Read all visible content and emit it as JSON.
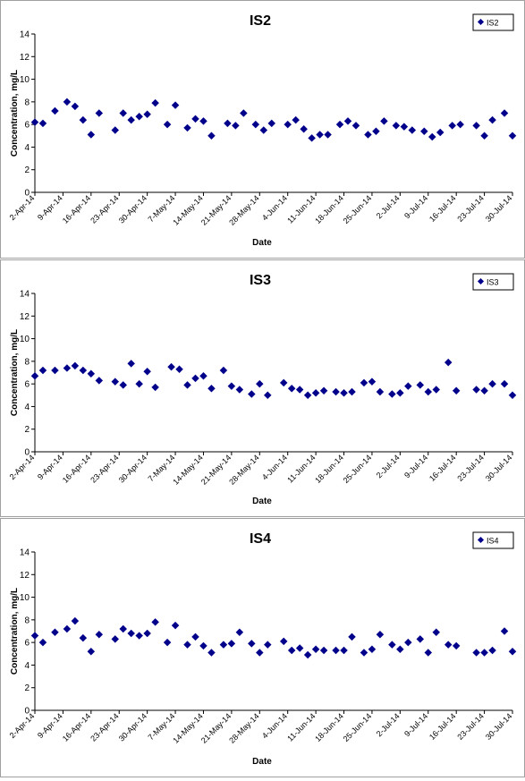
{
  "colors": {
    "marker": "#00008B",
    "axis": "#000000",
    "border": "#a0a0a0"
  },
  "chart_data": [
    {
      "type": "scatter",
      "title": "IS2",
      "xlabel": "Date",
      "ylabel": "Concentration, mg/L",
      "legend": {
        "entries": [
          "IS2"
        ],
        "placement": "top-right"
      },
      "ylim": [
        0,
        14
      ],
      "yticks": [
        0,
        2,
        4,
        6,
        8,
        10,
        12,
        14
      ],
      "xlim": [
        "2014-04-02",
        "2014-07-30"
      ],
      "xtick_labels": [
        "2-Apr-14",
        "9-Apr-14",
        "16-Apr-14",
        "23-Apr-14",
        "30-Apr-14",
        "7-May-14",
        "14-May-14",
        "21-May-14",
        "28-May-14",
        "4-Jun-14",
        "11-Jun-14",
        "18-Jun-14",
        "25-Jun-14",
        "2-Jul-14",
        "9-Jul-14",
        "16-Jul-14",
        "23-Jul-14",
        "30-Jul-14"
      ],
      "grid": false,
      "series": [
        {
          "name": "IS2",
          "points": [
            [
              "2014-04-02",
              6.2
            ],
            [
              "2014-04-04",
              6.1
            ],
            [
              "2014-04-07",
              7.2
            ],
            [
              "2014-04-10",
              8.0
            ],
            [
              "2014-04-12",
              7.6
            ],
            [
              "2014-04-14",
              6.4
            ],
            [
              "2014-04-16",
              5.1
            ],
            [
              "2014-04-18",
              7.0
            ],
            [
              "2014-04-22",
              5.5
            ],
            [
              "2014-04-24",
              7.0
            ],
            [
              "2014-04-26",
              6.4
            ],
            [
              "2014-04-28",
              6.7
            ],
            [
              "2014-04-30",
              6.9
            ],
            [
              "2014-05-02",
              7.9
            ],
            [
              "2014-05-05",
              6.0
            ],
            [
              "2014-05-07",
              7.7
            ],
            [
              "2014-05-10",
              5.7
            ],
            [
              "2014-05-12",
              6.5
            ],
            [
              "2014-05-14",
              6.3
            ],
            [
              "2014-05-16",
              5.0
            ],
            [
              "2014-05-20",
              6.1
            ],
            [
              "2014-05-22",
              5.9
            ],
            [
              "2014-05-24",
              7.0
            ],
            [
              "2014-05-27",
              6.0
            ],
            [
              "2014-05-29",
              5.5
            ],
            [
              "2014-05-31",
              6.1
            ],
            [
              "2014-06-04",
              6.0
            ],
            [
              "2014-06-06",
              6.4
            ],
            [
              "2014-06-08",
              5.6
            ],
            [
              "2014-06-10",
              4.8
            ],
            [
              "2014-06-12",
              5.1
            ],
            [
              "2014-06-14",
              5.1
            ],
            [
              "2014-06-17",
              6.0
            ],
            [
              "2014-06-19",
              6.3
            ],
            [
              "2014-06-21",
              5.9
            ],
            [
              "2014-06-24",
              5.1
            ],
            [
              "2014-06-26",
              5.4
            ],
            [
              "2014-06-28",
              6.3
            ],
            [
              "2014-07-01",
              5.9
            ],
            [
              "2014-07-03",
              5.8
            ],
            [
              "2014-07-05",
              5.5
            ],
            [
              "2014-07-08",
              5.4
            ],
            [
              "2014-07-10",
              4.9
            ],
            [
              "2014-07-12",
              5.3
            ],
            [
              "2014-07-15",
              5.9
            ],
            [
              "2014-07-17",
              6.0
            ],
            [
              "2014-07-21",
              5.9
            ],
            [
              "2014-07-23",
              5.0
            ],
            [
              "2014-07-25",
              6.4
            ],
            [
              "2014-07-28",
              7.0
            ],
            [
              "2014-07-30",
              5.0
            ]
          ]
        }
      ]
    },
    {
      "type": "scatter",
      "title": "IS3",
      "xlabel": "Date",
      "ylabel": "Concentration, mg/L",
      "legend": {
        "entries": [
          "IS3"
        ],
        "placement": "top-right"
      },
      "ylim": [
        0,
        14
      ],
      "yticks": [
        0,
        2,
        4,
        6,
        8,
        10,
        12,
        14
      ],
      "xlim": [
        "2014-04-02",
        "2014-07-30"
      ],
      "xtick_labels": [
        "2-Apr-14",
        "9-Apr-14",
        "16-Apr-14",
        "23-Apr-14",
        "30-Apr-14",
        "7-May-14",
        "14-May-14",
        "21-May-14",
        "28-May-14",
        "4-Jun-14",
        "11-Jun-14",
        "18-Jun-14",
        "25-Jun-14",
        "2-Jul-14",
        "9-Jul-14",
        "16-Jul-14",
        "23-Jul-14",
        "30-Jul-14"
      ],
      "grid": false,
      "series": [
        {
          "name": "IS3",
          "points": [
            [
              "2014-04-02",
              6.7
            ],
            [
              "2014-04-04",
              7.2
            ],
            [
              "2014-04-07",
              7.2
            ],
            [
              "2014-04-10",
              7.4
            ],
            [
              "2014-04-12",
              7.6
            ],
            [
              "2014-04-14",
              7.2
            ],
            [
              "2014-04-16",
              6.9
            ],
            [
              "2014-04-18",
              6.3
            ],
            [
              "2014-04-22",
              6.2
            ],
            [
              "2014-04-24",
              5.9
            ],
            [
              "2014-04-26",
              7.8
            ],
            [
              "2014-04-28",
              6.0
            ],
            [
              "2014-04-30",
              7.1
            ],
            [
              "2014-05-02",
              5.7
            ],
            [
              "2014-05-06",
              7.5
            ],
            [
              "2014-05-08",
              7.3
            ],
            [
              "2014-05-10",
              5.9
            ],
            [
              "2014-05-12",
              6.5
            ],
            [
              "2014-05-14",
              6.7
            ],
            [
              "2014-05-16",
              5.6
            ],
            [
              "2014-05-19",
              7.2
            ],
            [
              "2014-05-21",
              5.8
            ],
            [
              "2014-05-23",
              5.5
            ],
            [
              "2014-05-26",
              5.1
            ],
            [
              "2014-05-28",
              6.0
            ],
            [
              "2014-05-30",
              5.0
            ],
            [
              "2014-06-03",
              6.1
            ],
            [
              "2014-06-05",
              5.6
            ],
            [
              "2014-06-07",
              5.5
            ],
            [
              "2014-06-09",
              5.0
            ],
            [
              "2014-06-11",
              5.2
            ],
            [
              "2014-06-13",
              5.4
            ],
            [
              "2014-06-16",
              5.3
            ],
            [
              "2014-06-18",
              5.2
            ],
            [
              "2014-06-20",
              5.3
            ],
            [
              "2014-06-23",
              6.1
            ],
            [
              "2014-06-25",
              6.2
            ],
            [
              "2014-06-27",
              5.3
            ],
            [
              "2014-06-30",
              5.1
            ],
            [
              "2014-07-02",
              5.2
            ],
            [
              "2014-07-04",
              5.8
            ],
            [
              "2014-07-07",
              5.9
            ],
            [
              "2014-07-09",
              5.3
            ],
            [
              "2014-07-11",
              5.5
            ],
            [
              "2014-07-14",
              7.9
            ],
            [
              "2014-07-16",
              5.4
            ],
            [
              "2014-07-21",
              5.5
            ],
            [
              "2014-07-23",
              5.4
            ],
            [
              "2014-07-25",
              6.0
            ],
            [
              "2014-07-28",
              6.0
            ],
            [
              "2014-07-30",
              5.0
            ]
          ]
        }
      ]
    },
    {
      "type": "scatter",
      "title": "IS4",
      "xlabel": "Date",
      "ylabel": "Concentration, mg/L",
      "legend": {
        "entries": [
          "IS4"
        ],
        "placement": "top-right"
      },
      "ylim": [
        0,
        14
      ],
      "yticks": [
        0,
        2,
        4,
        6,
        8,
        10,
        12,
        14
      ],
      "xlim": [
        "2014-04-02",
        "2014-07-30"
      ],
      "xtick_labels": [
        "2-Apr-14",
        "9-Apr-14",
        "16-Apr-14",
        "23-Apr-14",
        "30-Apr-14",
        "7-May-14",
        "14-May-14",
        "21-May-14",
        "28-May-14",
        "4-Jun-14",
        "11-Jun-14",
        "18-Jun-14",
        "25-Jun-14",
        "2-Jul-14",
        "9-Jul-14",
        "16-Jul-14",
        "23-Jul-14",
        "30-Jul-14"
      ],
      "grid": false,
      "series": [
        {
          "name": "IS4",
          "points": [
            [
              "2014-04-02",
              6.6
            ],
            [
              "2014-04-04",
              6.0
            ],
            [
              "2014-04-07",
              6.9
            ],
            [
              "2014-04-10",
              7.2
            ],
            [
              "2014-04-12",
              7.9
            ],
            [
              "2014-04-14",
              6.4
            ],
            [
              "2014-04-16",
              5.2
            ],
            [
              "2014-04-18",
              6.7
            ],
            [
              "2014-04-22",
              6.3
            ],
            [
              "2014-04-24",
              7.2
            ],
            [
              "2014-04-26",
              6.8
            ],
            [
              "2014-04-28",
              6.6
            ],
            [
              "2014-04-30",
              6.8
            ],
            [
              "2014-05-02",
              7.8
            ],
            [
              "2014-05-05",
              6.0
            ],
            [
              "2014-05-07",
              7.5
            ],
            [
              "2014-05-10",
              5.8
            ],
            [
              "2014-05-12",
              6.5
            ],
            [
              "2014-05-14",
              5.7
            ],
            [
              "2014-05-16",
              5.1
            ],
            [
              "2014-05-19",
              5.8
            ],
            [
              "2014-05-21",
              5.9
            ],
            [
              "2014-05-23",
              6.9
            ],
            [
              "2014-05-26",
              5.9
            ],
            [
              "2014-05-28",
              5.1
            ],
            [
              "2014-05-30",
              5.8
            ],
            [
              "2014-06-03",
              6.1
            ],
            [
              "2014-06-05",
              5.3
            ],
            [
              "2014-06-07",
              5.5
            ],
            [
              "2014-06-09",
              4.9
            ],
            [
              "2014-06-11",
              5.4
            ],
            [
              "2014-06-13",
              5.3
            ],
            [
              "2014-06-16",
              5.3
            ],
            [
              "2014-06-18",
              5.3
            ],
            [
              "2014-06-20",
              6.5
            ],
            [
              "2014-06-23",
              5.1
            ],
            [
              "2014-06-25",
              5.4
            ],
            [
              "2014-06-27",
              6.7
            ],
            [
              "2014-06-30",
              5.8
            ],
            [
              "2014-07-02",
              5.4
            ],
            [
              "2014-07-04",
              6.0
            ],
            [
              "2014-07-07",
              6.3
            ],
            [
              "2014-07-09",
              5.1
            ],
            [
              "2014-07-11",
              6.9
            ],
            [
              "2014-07-14",
              5.8
            ],
            [
              "2014-07-16",
              5.7
            ],
            [
              "2014-07-21",
              5.1
            ],
            [
              "2014-07-23",
              5.1
            ],
            [
              "2014-07-25",
              5.3
            ],
            [
              "2014-07-28",
              7.0
            ],
            [
              "2014-07-30",
              5.2
            ]
          ]
        }
      ]
    }
  ]
}
